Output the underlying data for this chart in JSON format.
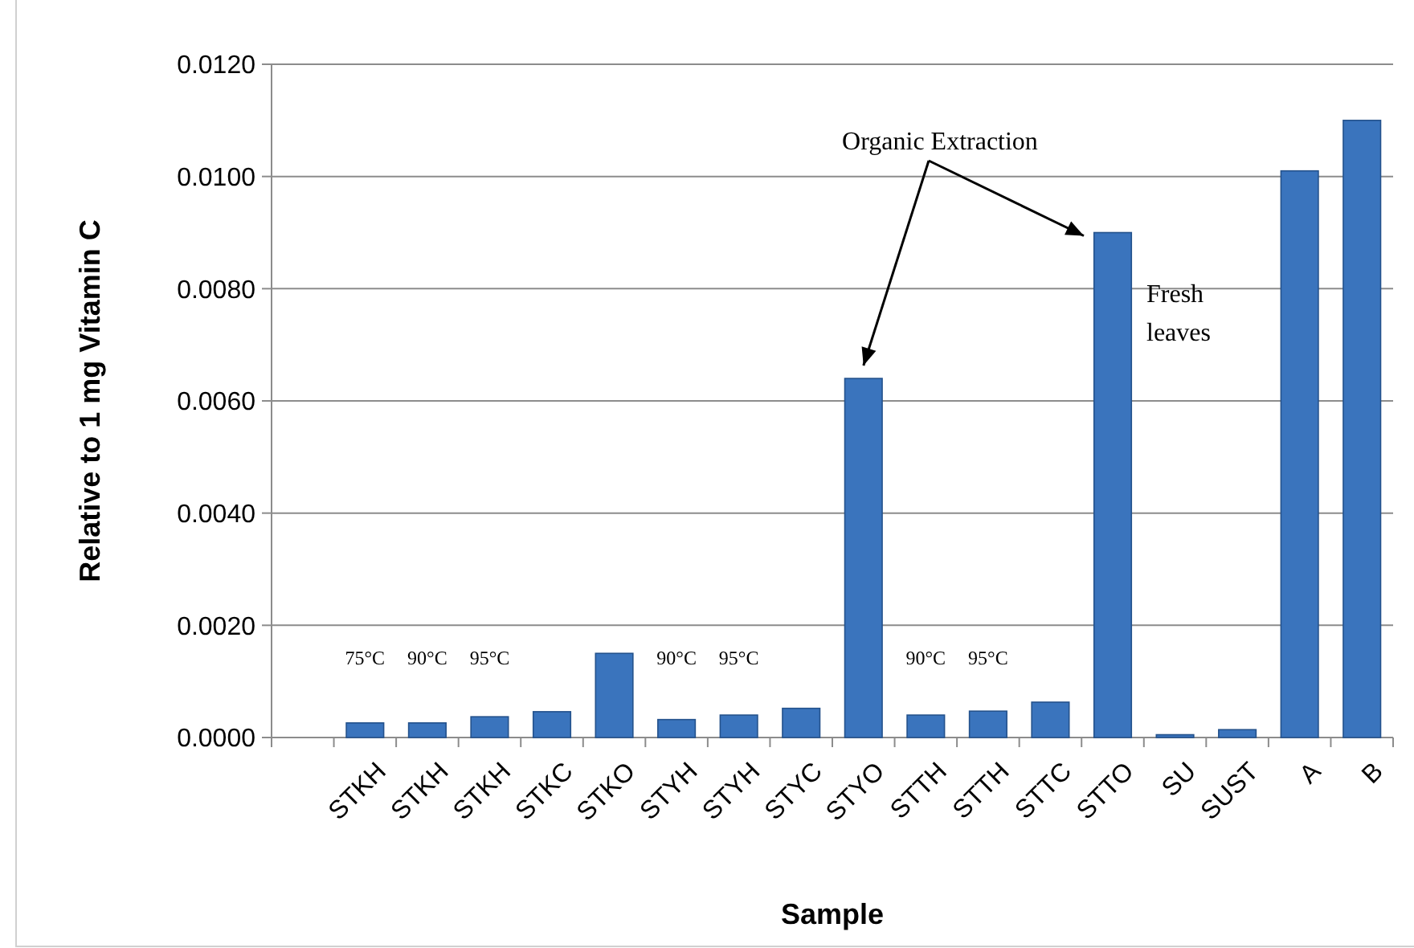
{
  "chart_data": {
    "type": "bar",
    "xlabel": "Sample",
    "ylabel": "Relative to 1 mg  Vitamin C",
    "categories": [
      null,
      "STKH",
      "STKH",
      "STKH",
      "STKC",
      "STKO",
      "STYH",
      "STYH",
      "STYC",
      "STYO",
      "STTH",
      "STTH",
      "STTC",
      "STTO",
      "SU",
      "SUST",
      "A",
      "B"
    ],
    "values": [
      null,
      0.00026,
      0.00026,
      0.00037,
      0.00046,
      0.0015,
      0.00032,
      0.0004,
      0.00052,
      0.0064,
      0.0004,
      0.00047,
      0.00063,
      0.009,
      5e-05,
      0.00014,
      0.0101,
      0.011
    ],
    "color": "#3a74bd",
    "ylim": [
      0,
      0.012
    ],
    "yticks": [
      {
        "value": 0,
        "label": "0.0000"
      },
      {
        "value": 0.002,
        "label": "0.0020"
      },
      {
        "value": 0.004,
        "label": "0.0040"
      },
      {
        "value": 0.006,
        "label": "0.0060"
      },
      {
        "value": 0.008,
        "label": "0.0080"
      },
      {
        "value": 0.01,
        "label": "0.0100"
      },
      {
        "value": 0.012,
        "label": "0.0120"
      }
    ],
    "grid": "y",
    "annotations": [
      "75°C",
      "90°C",
      "95°C",
      "90°C",
      "95°C",
      "90°C",
      "95°C",
      "Organic Extraction",
      "Fresh leaves"
    ]
  }
}
